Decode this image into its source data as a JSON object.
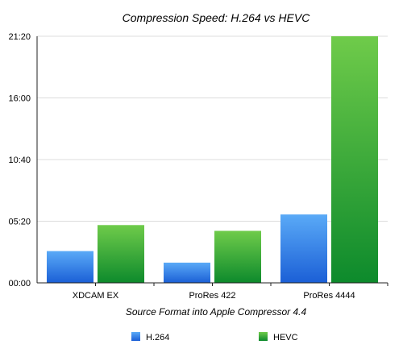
{
  "chart_data": {
    "type": "bar",
    "title": "Compression Speed: H.264 vs HEVC",
    "xlabel": "Source Format into Apple Compressor 4.4",
    "ylabel": "",
    "categories": [
      "XDCAM EX",
      "ProRes 422",
      "ProRes 4444"
    ],
    "y_ticks": [
      "00:00",
      "05:20",
      "10:40",
      "16:00",
      "21:20"
    ],
    "y_tick_seconds": [
      0,
      320,
      640,
      960,
      1280
    ],
    "ylim_seconds": [
      0,
      1280
    ],
    "grid": true,
    "legend_position": "bottom",
    "series": [
      {
        "name": "H.264",
        "color": "#2f7ee8",
        "values_seconds": [
          165,
          105,
          355
        ]
      },
      {
        "name": "HEVC",
        "color": "#2ea52e",
        "values_seconds": [
          300,
          270,
          1280
        ]
      }
    ]
  }
}
